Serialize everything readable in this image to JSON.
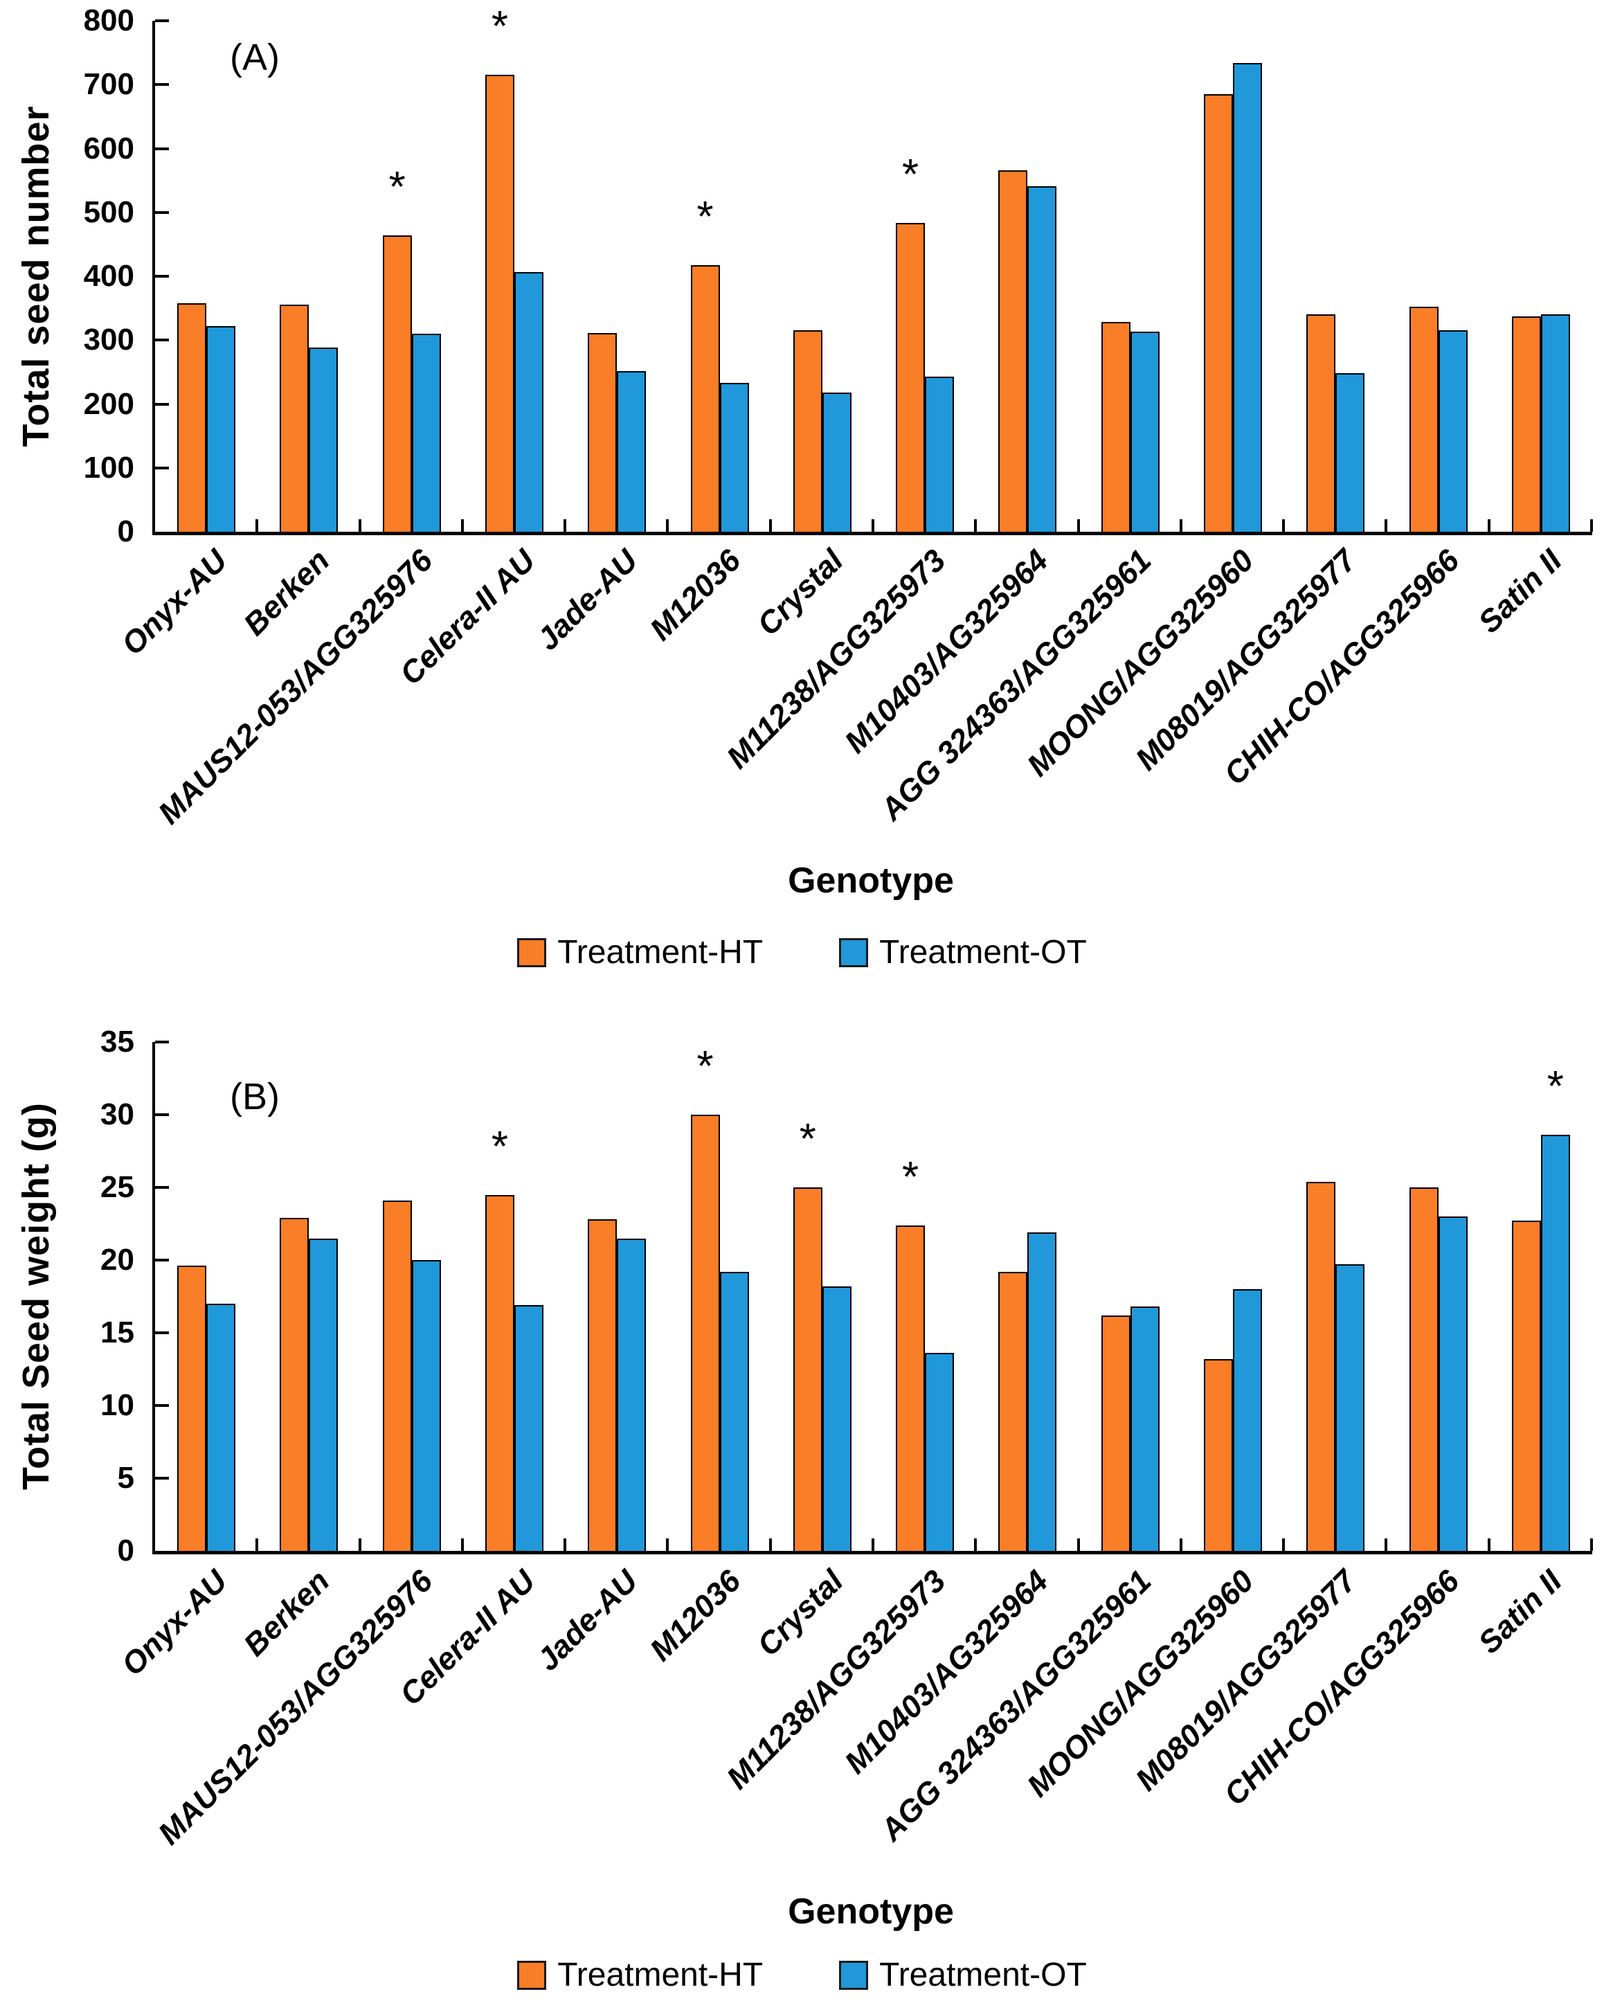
{
  "figure_title": "",
  "significance_marker": "*",
  "colors": {
    "treatment_ht": "#FA7D28",
    "treatment_ot": "#2198D9",
    "bar_outline": "#000000",
    "axis": "#000000"
  },
  "chart_data": [
    {
      "panel_label": "(A)",
      "type": "bar",
      "ylabel": "Total seed number",
      "xlabel": "Genotype",
      "ylim": [
        0,
        800
      ],
      "ytick_step": 100,
      "grid": false,
      "legend_position": "bottom",
      "categories": [
        "Onyx-AU",
        "Berken",
        "MAUS12-053/AGG325976",
        "Celera-II AU",
        "Jade-AU",
        "M12036",
        "Crystal",
        "M11238/AGG325973",
        "M10403/AG325964",
        "AGG 324363/AGG325961",
        "MOONG/AGG325960",
        "M08019/AGG325977",
        "CHIH-CO/AGG325966",
        "Satin II"
      ],
      "series": [
        {
          "name": "Treatment-HT",
          "color": "#FA7D28",
          "values": [
            358,
            356,
            464,
            716,
            311,
            417,
            316,
            483,
            566,
            328,
            685,
            340,
            352,
            337
          ],
          "asterisk_indices": [
            2,
            3,
            5,
            7
          ]
        },
        {
          "name": "Treatment-OT",
          "color": "#2198D9",
          "values": [
            322,
            288,
            310,
            406,
            252,
            233,
            218,
            243,
            541,
            313,
            734,
            248,
            316,
            340
          ],
          "asterisk_indices": []
        }
      ]
    },
    {
      "panel_label": "(B)",
      "type": "bar",
      "ylabel": "Total Seed weight (g)",
      "xlabel": "Genotype",
      "ylim": [
        0,
        35
      ],
      "ytick_step": 5,
      "grid": false,
      "legend_position": "bottom",
      "categories": [
        "Onyx-AU",
        "Berken",
        "MAUS12-053/AGG325976",
        "Celera-II AU",
        "Jade-AU",
        "M12036",
        "Crystal",
        "M11238/AGG325973",
        "M10403/AG325964",
        "AGG 324363/AGG325961",
        "MOONG/AGG325960",
        "M08019/AGG325977",
        "CHIH-CO/AGG325966",
        "Satin II"
      ],
      "series": [
        {
          "name": "Treatment-HT",
          "color": "#FA7D28",
          "values": [
            19.6,
            22.9,
            24.1,
            24.5,
            22.8,
            30.0,
            25.0,
            22.4,
            19.2,
            16.2,
            13.2,
            25.4,
            25.0,
            22.7
          ],
          "asterisk_indices": [
            3,
            5,
            6,
            7
          ]
        },
        {
          "name": "Treatment-OT",
          "color": "#2198D9",
          "values": [
            17.0,
            21.5,
            20.0,
            16.9,
            21.5,
            19.2,
            18.2,
            13.6,
            21.9,
            16.8,
            18.0,
            19.7,
            23.0,
            28.6
          ],
          "asterisk_indices": [
            13
          ]
        }
      ]
    }
  ]
}
